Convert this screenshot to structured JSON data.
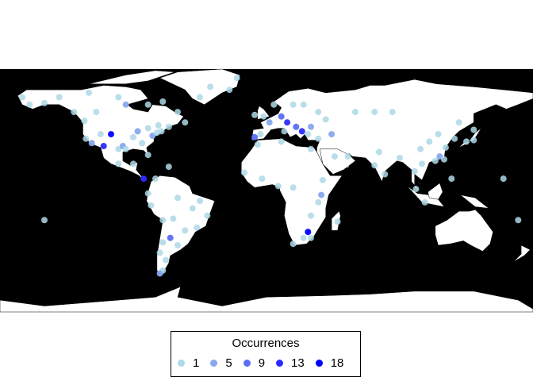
{
  "chart_data": {
    "type": "scatter",
    "projection": "equirectangular",
    "background_color": "#000000",
    "land_color": "#FFFFFF",
    "lon_range": [
      -180,
      180
    ],
    "lat_range": [
      -80,
      84
    ],
    "legend": {
      "title": "Occurrences",
      "placement": "bottom",
      "entries": [
        {
          "label": "1",
          "value": 1,
          "color": "#ADD8E6"
        },
        {
          "label": "5",
          "value": 5,
          "color": "#87A8EE"
        },
        {
          "label": "9",
          "value": 9,
          "color": "#5A6EF5"
        },
        {
          "label": "13",
          "value": 13,
          "color": "#2B2BFF"
        },
        {
          "label": "18",
          "value": 18,
          "color": "#0000FF"
        }
      ]
    },
    "points": [
      [
        -123,
        49,
        1
      ],
      [
        -122,
        37,
        1
      ],
      [
        -118,
        34,
        3
      ],
      [
        -112,
        40,
        1
      ],
      [
        -105,
        40,
        18
      ],
      [
        -100,
        30,
        1
      ],
      [
        -97,
        32,
        3
      ],
      [
        -95,
        30,
        1
      ],
      [
        -90,
        38,
        1
      ],
      [
        -87,
        42,
        5
      ],
      [
        -84,
        34,
        1
      ],
      [
        -80,
        26,
        1
      ],
      [
        -77,
        39,
        3
      ],
      [
        -74,
        41,
        1
      ],
      [
        -71,
        42,
        1
      ],
      [
        -80,
        44,
        1
      ],
      [
        -73,
        46,
        1
      ],
      [
        -66,
        45,
        1
      ],
      [
        -110,
        32,
        12
      ],
      [
        -115,
        55,
        1
      ],
      [
        -130,
        55,
        1
      ],
      [
        -150,
        61,
        1
      ],
      [
        -160,
        60,
        1
      ],
      [
        -165,
        65,
        1
      ],
      [
        -140,
        65,
        1
      ],
      [
        -120,
        68,
        1
      ],
      [
        -100,
        65,
        1
      ],
      [
        -95,
        60,
        3
      ],
      [
        -80,
        60,
        1
      ],
      [
        -70,
        62,
        1
      ],
      [
        -60,
        55,
        1
      ],
      [
        -55,
        48,
        1
      ],
      [
        -45,
        65,
        1
      ],
      [
        -38,
        72,
        1
      ],
      [
        -20,
        78,
        1
      ],
      [
        -25,
        70,
        1
      ],
      [
        -100,
        20,
        1
      ],
      [
        -90,
        20,
        1
      ],
      [
        -83,
        10,
        12
      ],
      [
        -75,
        10,
        1
      ],
      [
        -66,
        18,
        1
      ],
      [
        -80,
        0,
        1
      ],
      [
        -78,
        -8,
        1
      ],
      [
        -60,
        -3,
        1
      ],
      [
        -50,
        -10,
        1
      ],
      [
        -45,
        -5,
        1
      ],
      [
        -40,
        -15,
        1
      ],
      [
        -47,
        -23,
        1
      ],
      [
        -55,
        -25,
        1
      ],
      [
        -63,
        -17,
        1
      ],
      [
        -70,
        -18,
        1
      ],
      [
        -65,
        -30,
        9
      ],
      [
        -70,
        -33,
        1
      ],
      [
        -60,
        -35,
        1
      ],
      [
        -72,
        -40,
        1
      ],
      [
        -68,
        -45,
        1
      ],
      [
        -70,
        -52,
        1
      ],
      [
        -72,
        -54,
        5
      ],
      [
        -150,
        -18,
        1
      ],
      [
        -8,
        53,
        1
      ],
      [
        -2,
        52,
        1
      ],
      [
        2,
        48,
        5
      ],
      [
        -4,
        40,
        1
      ],
      [
        -8,
        38,
        9
      ],
      [
        10,
        52,
        9
      ],
      [
        14,
        48,
        13
      ],
      [
        20,
        45,
        9
      ],
      [
        24,
        42,
        13
      ],
      [
        30,
        45,
        5
      ],
      [
        12,
        42,
        1
      ],
      [
        18,
        60,
        1
      ],
      [
        25,
        60,
        1
      ],
      [
        5,
        60,
        1
      ],
      [
        35,
        55,
        1
      ],
      [
        40,
        50,
        1
      ],
      [
        28,
        40,
        1
      ],
      [
        35,
        37,
        1
      ],
      [
        44,
        40,
        5
      ],
      [
        -6,
        33,
        1
      ],
      [
        10,
        35,
        1
      ],
      [
        30,
        30,
        1
      ],
      [
        46,
        25,
        1
      ],
      [
        55,
        25,
        1
      ],
      [
        38,
        9,
        1
      ],
      [
        37,
        -1,
        5
      ],
      [
        35,
        -6,
        1
      ],
      [
        30,
        -15,
        1
      ],
      [
        28,
        -26,
        18
      ],
      [
        25,
        -30,
        1
      ],
      [
        18,
        -34,
        1
      ],
      [
        30,
        -30,
        1
      ],
      [
        -15,
        14,
        1
      ],
      [
        -3,
        10,
        1
      ],
      [
        8,
        5,
        1
      ],
      [
        18,
        4,
        1
      ],
      [
        48,
        -19,
        1
      ],
      [
        60,
        55,
        1
      ],
      [
        73,
        55,
        1
      ],
      [
        85,
        55,
        1
      ],
      [
        76,
        28,
        1
      ],
      [
        73,
        19,
        1
      ],
      [
        80,
        13,
        1
      ],
      [
        90,
        24,
        1
      ],
      [
        100,
        15,
        1
      ],
      [
        105,
        20,
        1
      ],
      [
        104,
        30,
        1
      ],
      [
        110,
        35,
        1
      ],
      [
        116,
        40,
        1
      ],
      [
        121,
        31,
        1
      ],
      [
        114,
        22,
        1
      ],
      [
        117,
        25,
        5
      ],
      [
        127,
        37,
        1
      ],
      [
        135,
        35,
        1
      ],
      [
        140,
        36,
        1
      ],
      [
        140,
        43,
        1
      ],
      [
        101,
        3,
        1
      ],
      [
        107,
        -6,
        1
      ],
      [
        125,
        10,
        1
      ],
      [
        170,
        -18,
        1
      ],
      [
        160,
        10,
        1
      ],
      [
        120,
        23,
        1
      ],
      [
        130,
        48,
        1
      ]
    ]
  }
}
